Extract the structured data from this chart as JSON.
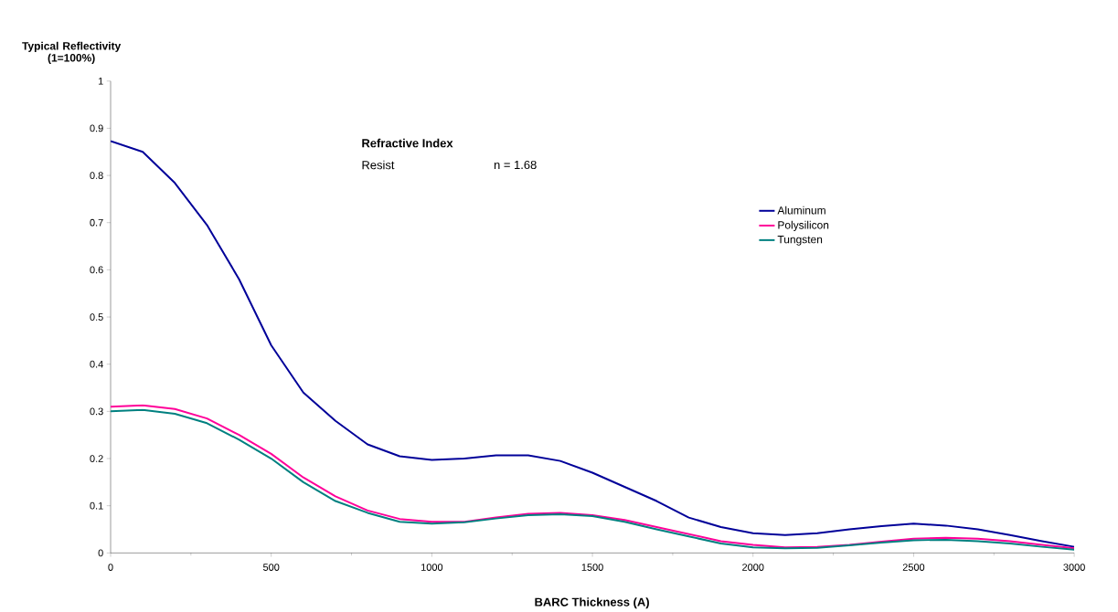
{
  "chart_data": {
    "type": "line",
    "xlabel": "BARC Thickness (A)",
    "ylabel": "Typical Reflectivity (1=100%)",
    "annotations": [
      "Refractive Index",
      "Resist",
      "n = 1.68"
    ],
    "x": [
      0,
      100,
      200,
      300,
      400,
      500,
      600,
      700,
      800,
      900,
      1000,
      1100,
      1200,
      1300,
      1400,
      1500,
      1600,
      1700,
      1800,
      1900,
      2000,
      2100,
      2200,
      2300,
      2400,
      2500,
      2600,
      2700,
      2800,
      2900,
      3000
    ],
    "series": [
      {
        "name": "Aluminum",
        "color": "#000099",
        "values": [
          0.873,
          0.85,
          0.784,
          0.695,
          0.58,
          0.44,
          0.34,
          0.28,
          0.23,
          0.205,
          0.197,
          0.2,
          0.207,
          0.207,
          0.195,
          0.17,
          0.14,
          0.11,
          0.075,
          0.055,
          0.042,
          0.038,
          0.042,
          0.05,
          0.057,
          0.062,
          0.058,
          0.05,
          0.038,
          0.025,
          0.013
        ]
      },
      {
        "name": "Polysilicon",
        "color": "#ff0099",
        "values": [
          0.31,
          0.313,
          0.305,
          0.285,
          0.25,
          0.21,
          0.16,
          0.12,
          0.09,
          0.072,
          0.066,
          0.066,
          0.075,
          0.083,
          0.085,
          0.08,
          0.07,
          0.055,
          0.04,
          0.025,
          0.017,
          0.012,
          0.013,
          0.017,
          0.024,
          0.03,
          0.032,
          0.03,
          0.025,
          0.017,
          0.01
        ]
      },
      {
        "name": "Tungsten",
        "color": "#008080",
        "values": [
          0.3,
          0.303,
          0.295,
          0.275,
          0.24,
          0.2,
          0.15,
          0.11,
          0.085,
          0.066,
          0.062,
          0.065,
          0.073,
          0.08,
          0.082,
          0.078,
          0.066,
          0.05,
          0.035,
          0.02,
          0.012,
          0.01,
          0.011,
          0.016,
          0.022,
          0.027,
          0.028,
          0.025,
          0.02,
          0.013,
          0.007
        ]
      }
    ],
    "xlim": [
      0,
      3000
    ],
    "xticks": [
      0,
      500,
      1000,
      1500,
      2000,
      2500,
      3000
    ],
    "ylim": [
      0,
      1
    ],
    "yticks": [
      0,
      0.1,
      0.2,
      0.3,
      0.4,
      0.5,
      0.6,
      0.7,
      0.8,
      0.9,
      1
    ],
    "grid": false,
    "legend": "right",
    "marker": "none",
    "line_style": "solid"
  }
}
